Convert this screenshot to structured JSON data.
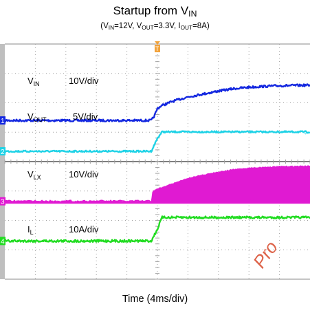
{
  "title": {
    "main": "Startup from V",
    "main_sub": "IN"
  },
  "subtitle": {
    "p1": "(V",
    "s1": "IN",
    "p2": "=12V, V",
    "s2": "OUT",
    "p3": "=3.3V, I",
    "s3": "OUT",
    "p4": "=8A)"
  },
  "xlabel": "Time (4ms/div)",
  "watermark": "Pro",
  "colors": {
    "vin": "#1428e0",
    "vout": "#1ed2e6",
    "vlx": "#e01ad2",
    "il": "#22dc22",
    "grid": "#a0a0a0",
    "divider": "#555555",
    "bezel": "#bfbfbf"
  },
  "channels": [
    {
      "id": "1",
      "name": "V",
      "name_sub": "IN",
      "scale": "10V/div",
      "marker": "1"
    },
    {
      "id": "2",
      "name": "V",
      "name_sub": "OUT",
      "scale": "5V/div",
      "marker": "2"
    },
    {
      "id": "3",
      "name": "V",
      "name_sub": "LX",
      "scale": "10V/div",
      "marker": "3"
    },
    {
      "id": "4",
      "name": "I",
      "name_sub": "L",
      "scale": "10A/div",
      "marker": "4"
    }
  ],
  "trigger_marker": "T",
  "chart_data": {
    "type": "line",
    "title": "Startup from VIN",
    "subtitle": "(VIN=12V, VOUT=3.3V, IOUT=8A)",
    "xlabel": "Time (4ms/div)",
    "ylabel": "",
    "x_unit": "ms",
    "xlim": [
      -20,
      20
    ],
    "grid": true,
    "divisions": {
      "x": 10,
      "y": 8
    },
    "series": [
      {
        "name": "VIN",
        "scale": "10V/div",
        "unit": "V",
        "baseline": 0,
        "points": [
          [
            -20,
            0
          ],
          [
            -0.8,
            0
          ],
          [
            -0.4,
            1.5
          ],
          [
            0,
            4
          ],
          [
            0.5,
            5
          ],
          [
            2,
            6.5
          ],
          [
            4,
            8
          ],
          [
            6,
            9
          ],
          [
            8,
            10
          ],
          [
            10,
            10.8
          ],
          [
            12,
            11.3
          ],
          [
            14,
            11.6
          ],
          [
            16,
            11.8
          ],
          [
            20,
            12
          ]
        ]
      },
      {
        "name": "VOUT",
        "scale": "5V/div",
        "unit": "V",
        "baseline": 0,
        "points": [
          [
            -20,
            0
          ],
          [
            -0.8,
            0
          ],
          [
            0,
            2.2
          ],
          [
            0.6,
            3.3
          ],
          [
            20,
            3.3
          ]
        ]
      },
      {
        "name": "VLX",
        "scale": "10V/div",
        "unit": "V",
        "baseline": 0,
        "envelope_points": [
          [
            -20,
            0
          ],
          [
            -0.8,
            0
          ],
          [
            -0.6,
            3.5
          ],
          [
            0,
            4.2
          ],
          [
            2,
            6
          ],
          [
            4,
            7.8
          ],
          [
            6,
            9
          ],
          [
            8,
            10
          ],
          [
            10,
            10.8
          ],
          [
            12,
            11.3
          ],
          [
            14,
            11.6
          ],
          [
            16,
            11.8
          ],
          [
            20,
            12
          ]
        ]
      },
      {
        "name": "IL",
        "scale": "10A/div",
        "unit": "A",
        "baseline": 0,
        "points": [
          [
            -20,
            0
          ],
          [
            -0.8,
            0
          ],
          [
            0,
            4
          ],
          [
            0.6,
            8
          ],
          [
            20,
            8
          ]
        ]
      }
    ]
  }
}
